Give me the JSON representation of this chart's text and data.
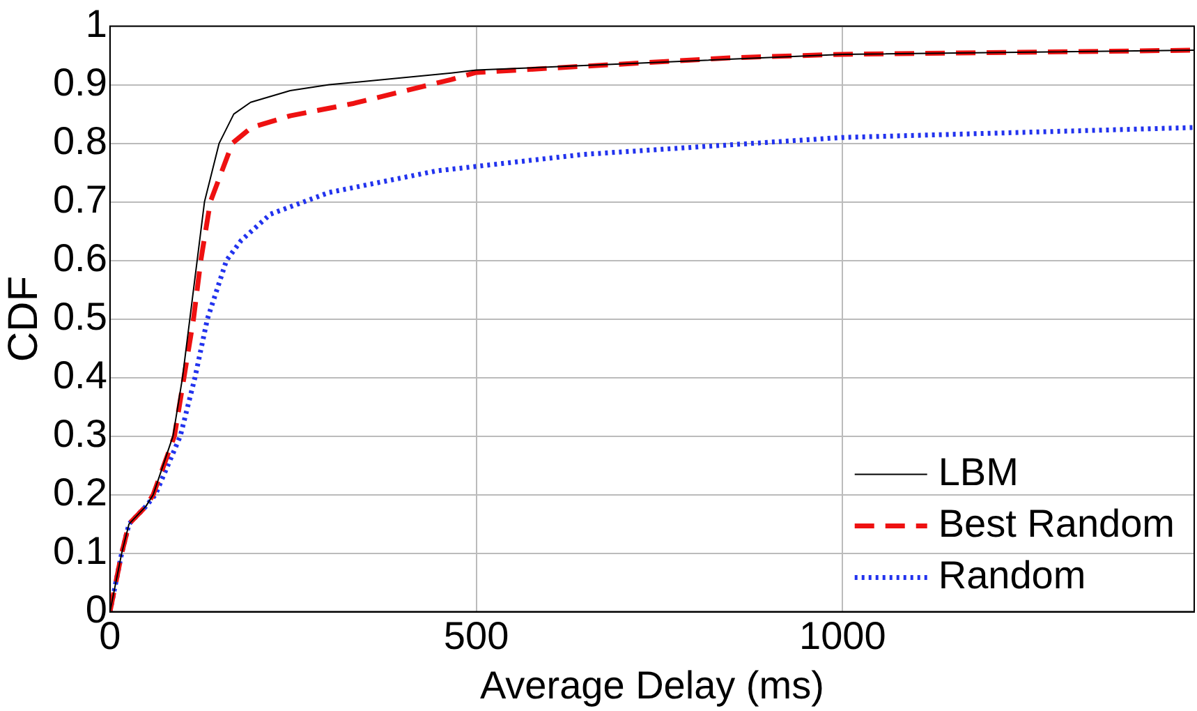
{
  "chart_data": {
    "type": "line",
    "xlabel": "Average Delay (ms)",
    "ylabel": "CDF",
    "xlim": [
      0,
      1480
    ],
    "ylim": [
      0,
      1
    ],
    "xticks": [
      0,
      500,
      1000
    ],
    "yticks": [
      0,
      0.1,
      0.2,
      0.3,
      0.4,
      0.5,
      0.6,
      0.7,
      0.8,
      0.9,
      1
    ],
    "grid": true,
    "legend": "bottom right",
    "marker": "none",
    "series": [
      {
        "name": "LBM",
        "color": "#000000",
        "line_style": "solid",
        "x": [
          0,
          16,
          26,
          49,
          59,
          86,
          99,
          109,
          119,
          129,
          149,
          169,
          192,
          246,
          299,
          466,
          500,
          1000,
          1480
        ],
        "values": [
          0,
          0.1,
          0.15,
          0.18,
          0.2,
          0.3,
          0.4,
          0.5,
          0.6,
          0.7,
          0.8,
          0.85,
          0.87,
          0.89,
          0.9,
          0.92,
          0.925,
          0.952,
          0.959
        ]
      },
      {
        "name": "Best Random",
        "color": "#ee1111",
        "line_style": "dashed",
        "x": [
          0,
          16,
          26,
          49,
          59,
          88,
          101,
          114,
          124,
          137,
          167,
          193,
          246,
          332,
          466,
          500,
          846,
          1000,
          1480
        ],
        "values": [
          0,
          0.1,
          0.15,
          0.18,
          0.2,
          0.3,
          0.4,
          0.5,
          0.6,
          0.7,
          0.8,
          0.827,
          0.847,
          0.868,
          0.909,
          0.921,
          0.946,
          0.952,
          0.959
        ]
      },
      {
        "name": "Random",
        "color": "#2233ee",
        "line_style": "dotted",
        "x": [
          0,
          16,
          26,
          49,
          62,
          96,
          116,
          133,
          159,
          179,
          219,
          299,
          446,
          646,
          1000,
          1480
        ],
        "values": [
          0,
          0.1,
          0.15,
          0.18,
          0.2,
          0.3,
          0.4,
          0.5,
          0.6,
          0.634,
          0.679,
          0.716,
          0.753,
          0.781,
          0.81,
          0.827
        ]
      }
    ]
  }
}
